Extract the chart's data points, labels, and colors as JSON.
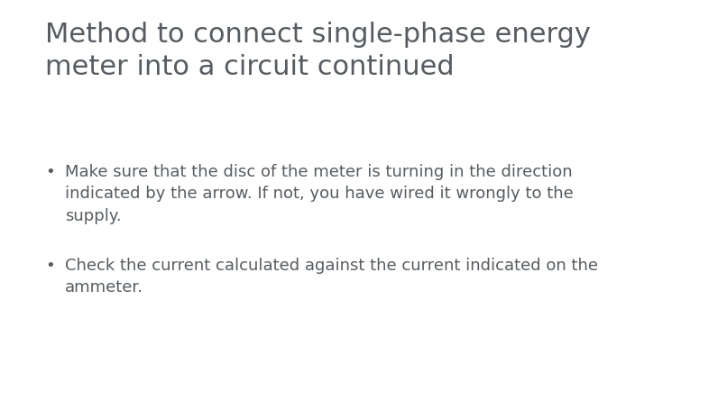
{
  "title_line1": "Method to connect single-phase energy",
  "title_line2": "meter into a circuit continued",
  "bullet1_line1": "Make sure that the disc of the meter is turning in the direction",
  "bullet1_line2": "indicated by the arrow. If not, you have wired it wrongly to the",
  "bullet1_line3": "supply.",
  "bullet2_line1": "Check the current calculated against the current indicated on the",
  "bullet2_line2": "ammeter.",
  "title_color": "#565c61",
  "text_color": "#565c61",
  "bg_color": "#ffffff",
  "title_fontsize": 22,
  "body_fontsize": 13,
  "bullet_fontsize": 13,
  "font_family": "DejaVu Sans"
}
